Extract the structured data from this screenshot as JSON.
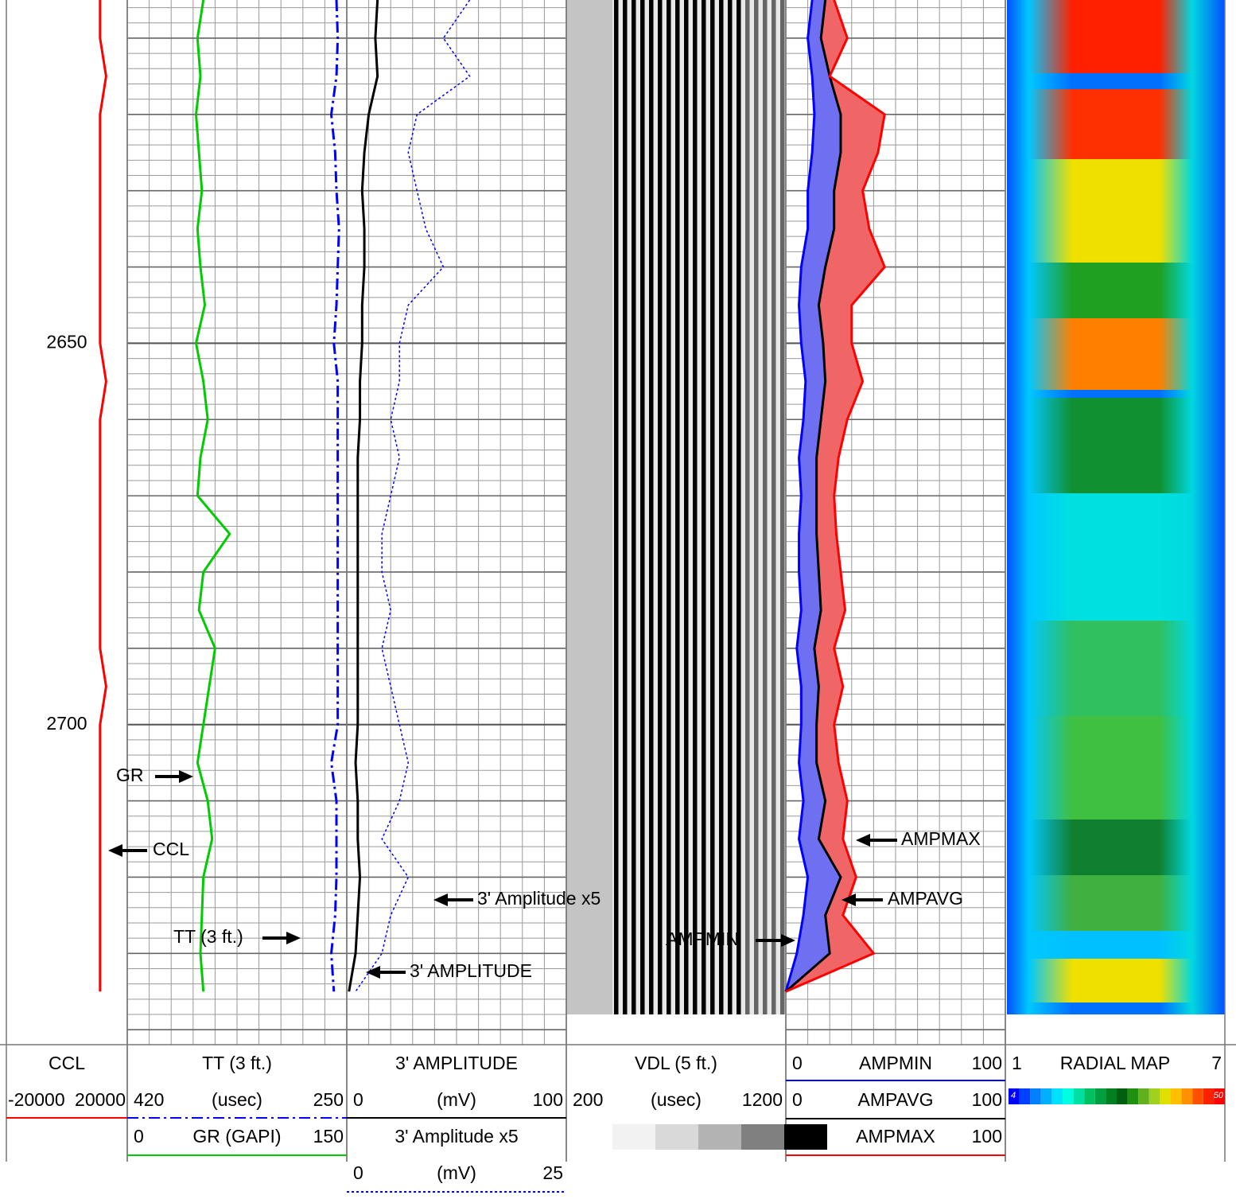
{
  "chart_data": {
    "type": "well-log",
    "ylim": [
      2605,
      2738
    ],
    "yticks": [
      2650,
      2700
    ],
    "depths": [
      2605,
      2610,
      2615,
      2620,
      2625,
      2630,
      2635,
      2640,
      2645,
      2650,
      2655,
      2660,
      2665,
      2670,
      2675,
      2680,
      2685,
      2690,
      2695,
      2700,
      2705,
      2710,
      2715,
      2720,
      2725,
      2730,
      2735
    ],
    "series": [
      {
        "name": "CCL",
        "color": "#ff0000",
        "xlim": [
          -20000,
          20000
        ],
        "values": [
          11000,
          11000,
          13000,
          11000,
          11000,
          11000,
          11000,
          11000,
          11000,
          11000,
          13000,
          11000,
          11000,
          11000,
          11000,
          11000,
          11000,
          11000,
          13000,
          11000,
          11000,
          11000,
          11000,
          11000,
          11000,
          11000,
          11000
        ]
      },
      {
        "name": "TT (3 ft.)",
        "unit": "(usec)",
        "color": "#0000ff",
        "xlim": [
          420,
          250
        ],
        "values": [
          258,
          257,
          258,
          262,
          259,
          258,
          256,
          257,
          258,
          260,
          257,
          257,
          257,
          257,
          257,
          257,
          257,
          257,
          257,
          257,
          262,
          258,
          258,
          258,
          259,
          262,
          260
        ]
      },
      {
        "name": "GR (GAPI)",
        "color": "#00cc00",
        "xlim": [
          0,
          150
        ],
        "values": [
          52,
          48,
          50,
          47,
          49,
          51,
          48,
          50,
          53,
          47,
          52,
          55,
          50,
          48,
          70,
          52,
          49,
          60,
          56,
          52,
          48,
          55,
          58,
          52,
          51,
          50,
          52
        ]
      },
      {
        "name": "3'  AMPLITUDE",
        "unit": "(mV)",
        "color": "#000000",
        "xlim": [
          0,
          100
        ],
        "values": [
          14,
          13,
          14,
          10,
          8,
          7,
          8,
          8,
          7,
          7,
          6,
          6,
          5,
          5,
          5,
          5,
          5,
          5,
          5,
          5,
          4,
          5,
          5,
          6,
          5,
          4,
          1
        ]
      },
      {
        "name": "3' Amplitude  x5",
        "unit": "(mV)",
        "color": "#0000ff",
        "xlim": [
          0,
          25
        ],
        "values": [
          14,
          11,
          14,
          8,
          7,
          8,
          9,
          11,
          7,
          6,
          6,
          5,
          6,
          5,
          4,
          4,
          5,
          4,
          5,
          6,
          7,
          6,
          4,
          7,
          5,
          4,
          1
        ]
      },
      {
        "name": "AMPMIN",
        "color": "#0000ff",
        "xlim": [
          0,
          100
        ],
        "values": [
          12,
          10,
          12,
          13,
          12,
          10,
          10,
          7,
          6,
          7,
          9,
          8,
          6,
          7,
          6,
          6,
          7,
          5,
          7,
          7,
          6,
          8,
          6,
          10,
          8,
          5,
          0
        ]
      },
      {
        "name": "AMPAVG",
        "color": "#000000",
        "xlim": [
          0,
          100
        ],
        "values": [
          18,
          16,
          20,
          25,
          25,
          22,
          22,
          18,
          15,
          17,
          18,
          16,
          14,
          14,
          14,
          15,
          16,
          13,
          15,
          14,
          14,
          18,
          15,
          25,
          18,
          20,
          0
        ]
      },
      {
        "name": "AMPMAX",
        "color": "#ff0000",
        "xlim": [
          0,
          100
        ],
        "values": [
          22,
          28,
          20,
          45,
          42,
          35,
          38,
          45,
          30,
          30,
          35,
          28,
          24,
          22,
          23,
          25,
          27,
          22,
          26,
          22,
          24,
          28,
          26,
          32,
          26,
          40,
          0
        ]
      }
    ],
    "vdl": {
      "title": "VDL (5 ft.)",
      "unit": "(usec)",
      "xlim": [
        200,
        1200
      ]
    },
    "radial_map": {
      "title": "RADIAL MAP",
      "xlim": [
        1,
        7
      ],
      "colorbar_ticks": [
        4,
        50
      ]
    },
    "annotations": [
      "GR"
    ]
  }
}
